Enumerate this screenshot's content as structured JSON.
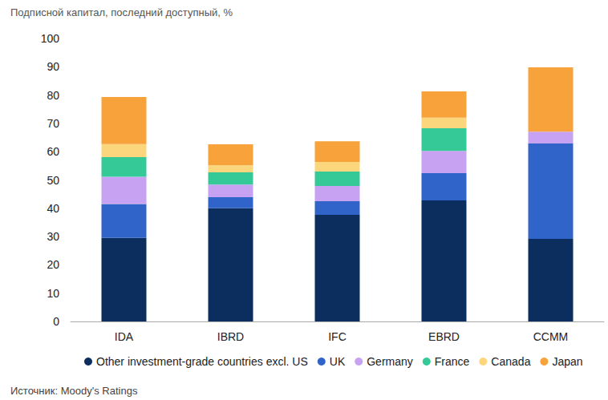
{
  "chart_data": {
    "type": "bar",
    "title": "Подписной капитал, последний доступный, %",
    "source": "Источник: Moody's Ratings",
    "categories": [
      "IDA",
      "IBRD",
      "IFC",
      "EBRD",
      "CCMM"
    ],
    "series": [
      {
        "name": "Other investment-grade countries excl. US",
        "color": "#0b2e5e",
        "values": [
          29.5,
          40,
          37.7,
          42.8,
          29.2
        ]
      },
      {
        "name": "UK",
        "color": "#3164c8",
        "values": [
          12,
          3.9,
          4.8,
          9.6,
          33.7
        ]
      },
      {
        "name": "Germany",
        "color": "#c7a2f2",
        "values": [
          9.6,
          4.5,
          5.4,
          7.9,
          4.2
        ]
      },
      {
        "name": "France",
        "color": "#35c997",
        "values": [
          7,
          4.3,
          5.1,
          8,
          0
        ]
      },
      {
        "name": "Canada",
        "color": "#fcd67c",
        "values": [
          4.6,
          2.5,
          3.4,
          3.7,
          0
        ]
      },
      {
        "name": "Japan",
        "color": "#f7a23b",
        "values": [
          16.6,
          7.4,
          7.3,
          9.3,
          22.7
        ]
      }
    ],
    "ylim": [
      0,
      100
    ],
    "yticks": [
      0,
      10,
      20,
      30,
      40,
      50,
      60,
      70,
      80,
      90,
      100
    ],
    "stacked": true,
    "grid": false,
    "legend": "bottom"
  }
}
